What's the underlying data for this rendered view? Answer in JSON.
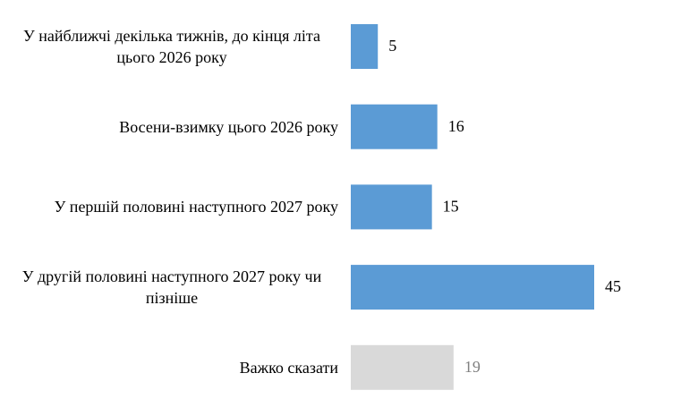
{
  "chart_data": {
    "type": "bar",
    "orientation": "horizontal",
    "categories": [
      "У найближчі декілька тижнів, до кінця літа цього 2026 року",
      "Восени-взимку цього 2026 року",
      "У першій половині наступного 2027 року",
      "У другій половині наступного 2027 року чи пізніше",
      "Важко сказати"
    ],
    "values": [
      5,
      16,
      15,
      45,
      19
    ],
    "colors": [
      "#5b9bd5",
      "#5b9bd5",
      "#5b9bd5",
      "#5b9bd5",
      "#d9d9d9"
    ],
    "value_label_colors": [
      "#000000",
      "#000000",
      "#000000",
      "#000000",
      "#808080"
    ]
  }
}
